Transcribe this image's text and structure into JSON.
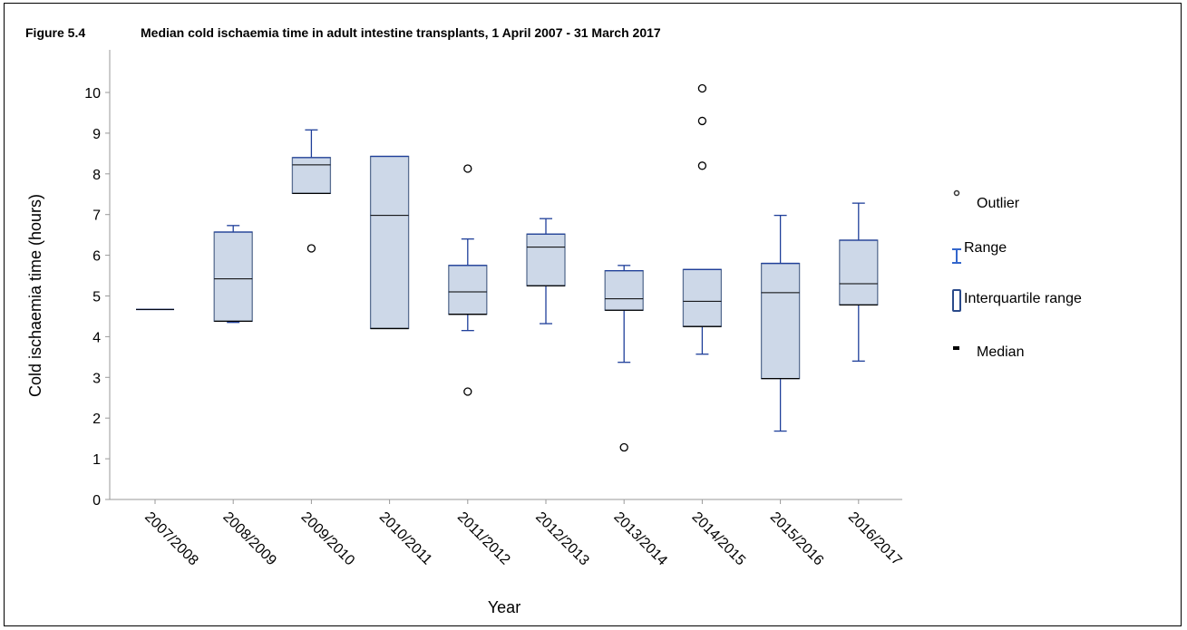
{
  "figure_label": "Figure 5.4",
  "figure_title": "Median cold ischaemia time in adult intestine transplants, 1 April 2007 - 31 March 2017",
  "chart_data": {
    "type": "boxplot",
    "xlabel": "Year",
    "ylabel": "Cold ischaemia time (hours)",
    "ylim": [
      0,
      11
    ],
    "yticks": [
      0,
      1,
      2,
      3,
      4,
      5,
      6,
      7,
      8,
      9,
      10
    ],
    "categories": [
      "2007/2008",
      "2008/2009",
      "2009/2010",
      "2010/2011",
      "2011/2012",
      "2012/2013",
      "2013/2014",
      "2014/2015",
      "2015/2016",
      "2016/2017"
    ],
    "boxes": [
      {
        "min": 4.67,
        "q1": 4.67,
        "median": 4.67,
        "q3": 4.67,
        "max": 4.67,
        "outliers": []
      },
      {
        "min": 4.35,
        "q1": 4.38,
        "median": 5.42,
        "q3": 6.57,
        "max": 6.73,
        "outliers": []
      },
      {
        "min": 7.52,
        "q1": 7.52,
        "median": 8.22,
        "q3": 8.4,
        "max": 9.08,
        "outliers": [
          6.17
        ]
      },
      {
        "min": 4.2,
        "q1": 4.2,
        "median": 6.98,
        "q3": 8.43,
        "max": 8.43,
        "outliers": []
      },
      {
        "min": 4.15,
        "q1": 4.55,
        "median": 5.1,
        "q3": 5.75,
        "max": 6.4,
        "outliers": [
          8.13,
          2.65
        ]
      },
      {
        "min": 4.32,
        "q1": 5.25,
        "median": 6.2,
        "q3": 6.52,
        "max": 6.9,
        "outliers": []
      },
      {
        "min": 3.37,
        "q1": 4.65,
        "median": 4.93,
        "q3": 5.62,
        "max": 5.75,
        "outliers": [
          1.28
        ]
      },
      {
        "min": 3.57,
        "q1": 4.25,
        "median": 4.87,
        "q3": 5.65,
        "max": 5.65,
        "outliers": [
          10.1,
          9.3,
          8.2
        ]
      },
      {
        "min": 1.68,
        "q1": 2.97,
        "median": 5.08,
        "q3": 5.8,
        "max": 6.98,
        "outliers": []
      },
      {
        "min": 3.4,
        "q1": 4.78,
        "median": 5.3,
        "q3": 6.37,
        "max": 7.28,
        "outliers": []
      }
    ],
    "legend": {
      "position": "right",
      "entries": [
        "Outlier",
        "Range",
        "Interquartile range",
        "Median"
      ]
    },
    "colors": {
      "box_fill": "#cdd8e8",
      "box_edge": "#5a6f92",
      "whisker": "#1f3f9a",
      "median": "#000000",
      "axis": "#999999"
    }
  }
}
